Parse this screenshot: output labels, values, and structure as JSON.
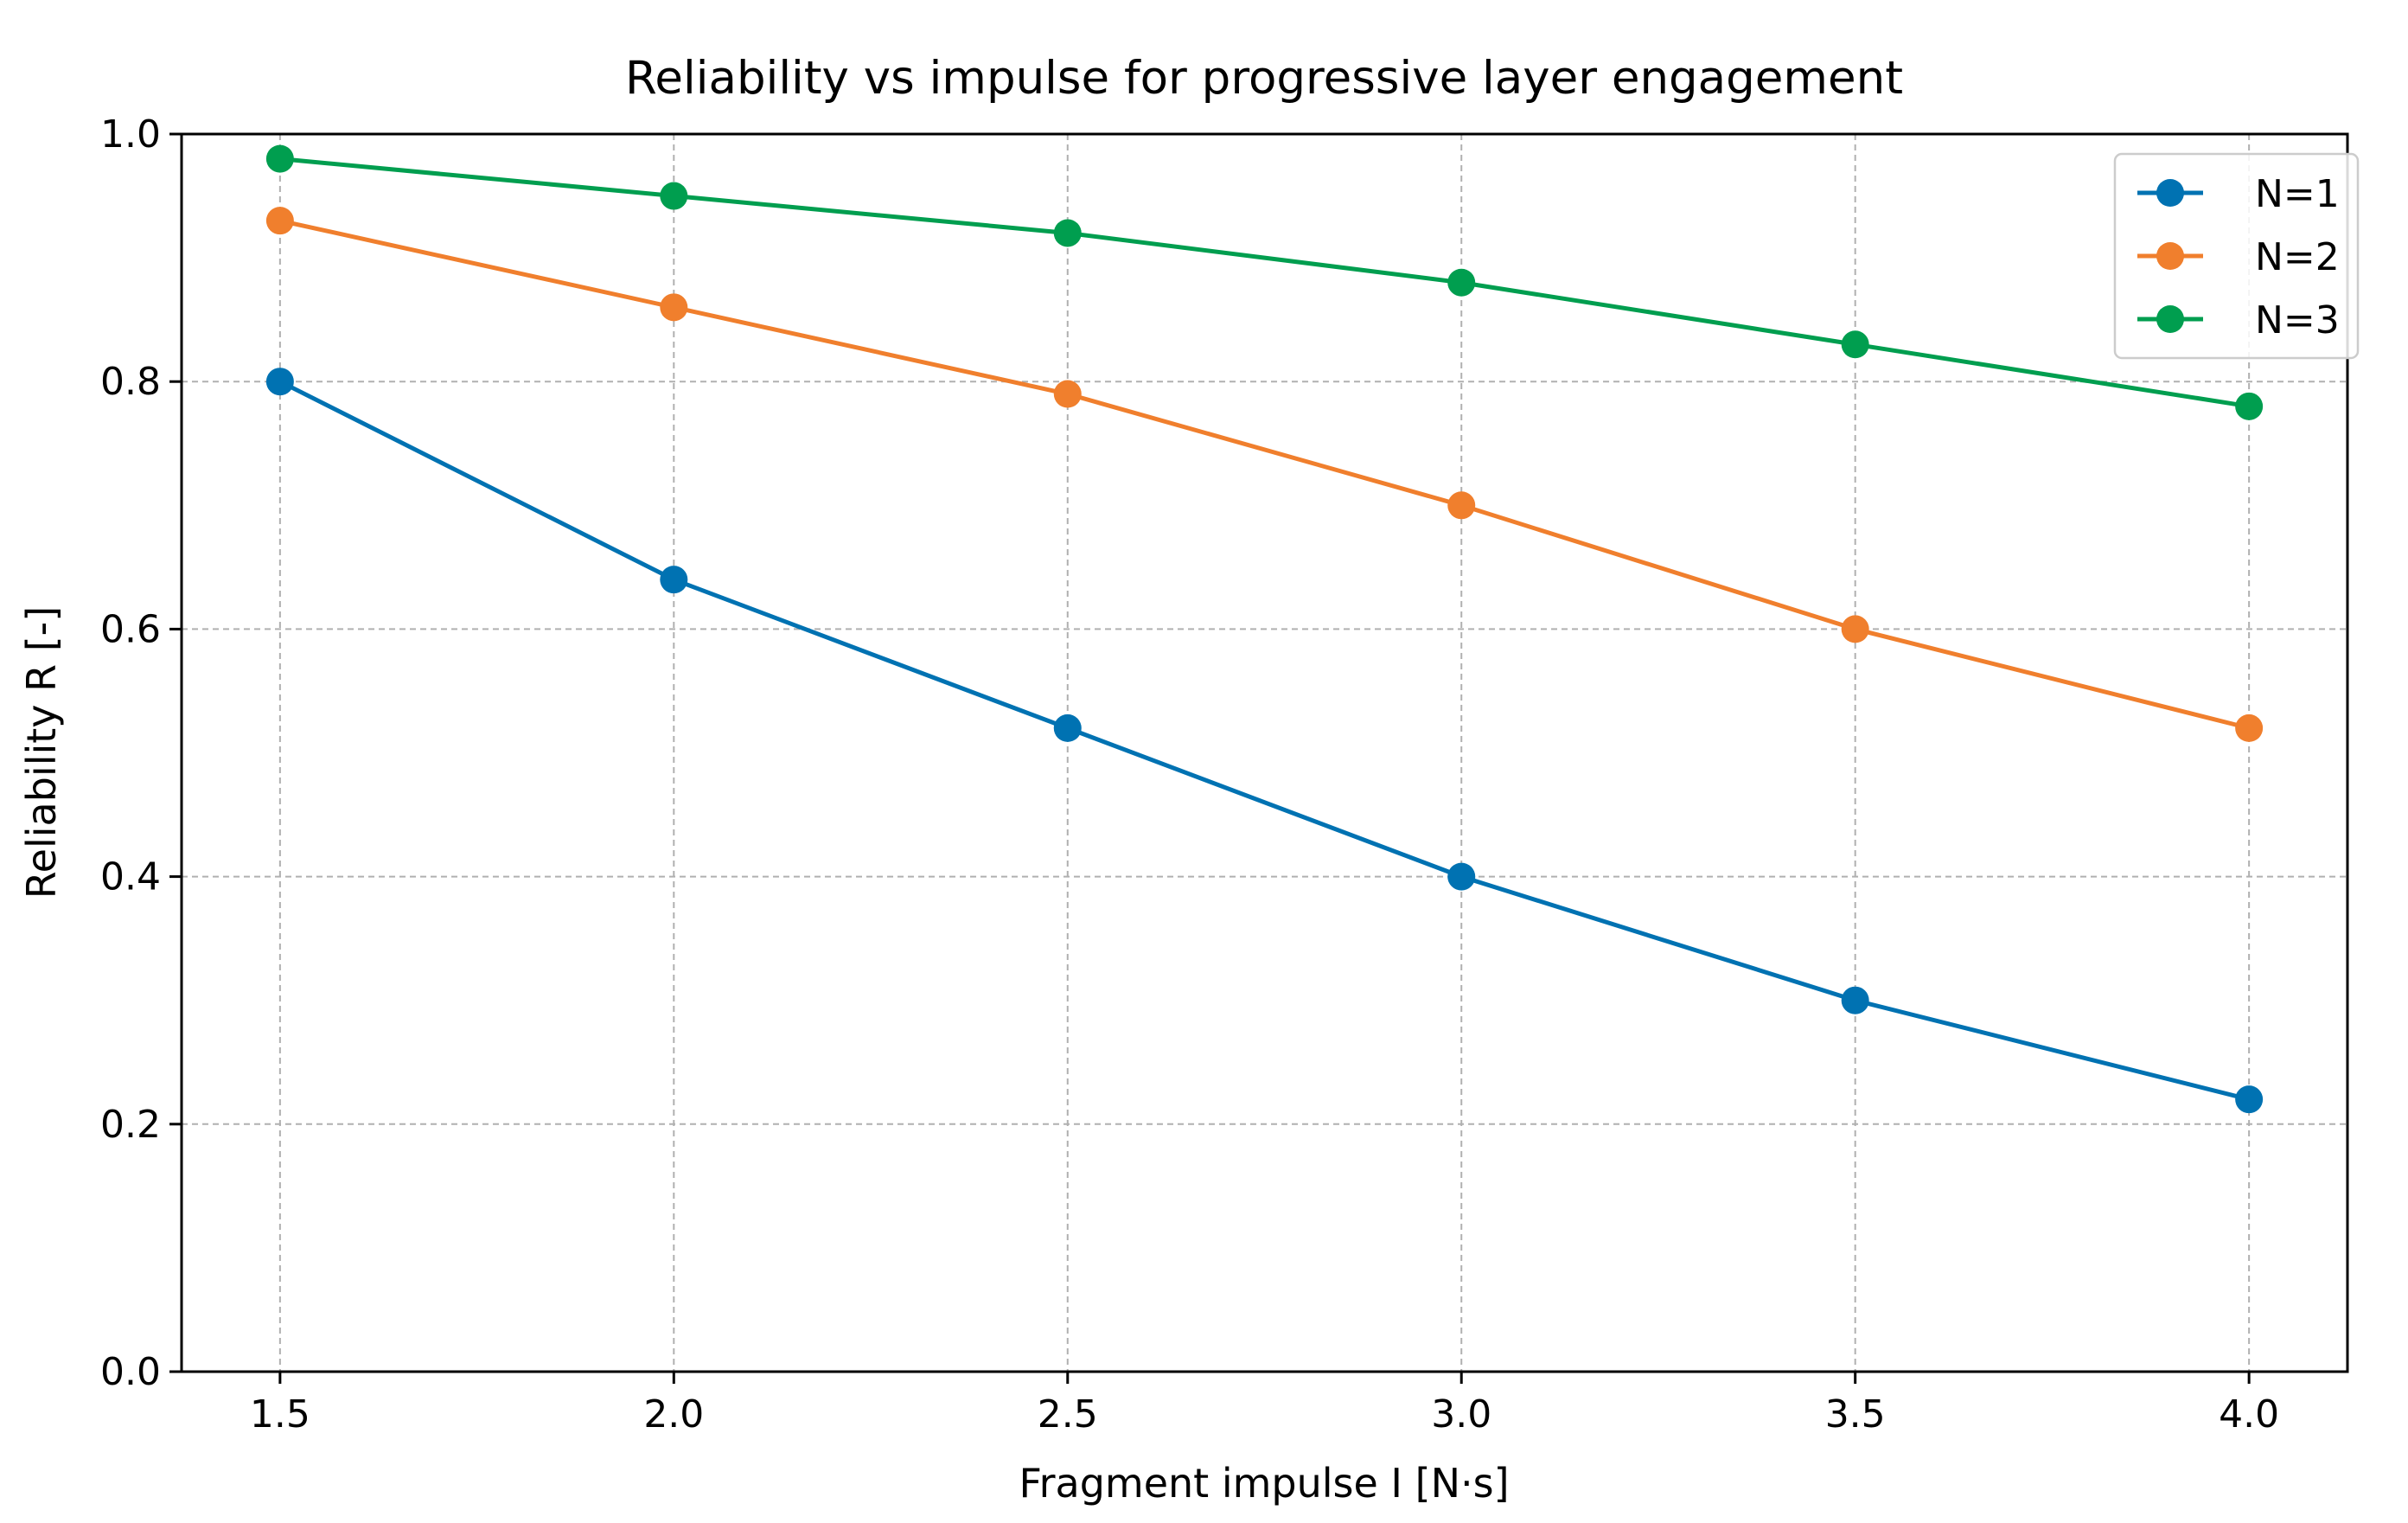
{
  "chart_data": {
    "type": "line",
    "title": "Reliability vs impulse for progressive layer engagement",
    "xlabel": "Fragment impulse I [N·s]",
    "ylabel": "Reliability R [-]",
    "xlim": [
      1.375,
      4.125
    ],
    "ylim": [
      0.0,
      1.0
    ],
    "x": [
      1.5,
      2.0,
      2.5,
      3.0,
      3.5,
      4.0
    ],
    "x_ticks": [
      "1.5",
      "2.0",
      "2.5",
      "3.0",
      "3.5",
      "4.0"
    ],
    "y_ticks": [
      "0.0",
      "0.2",
      "0.4",
      "0.6",
      "0.8",
      "1.0"
    ],
    "grid": true,
    "legend_position": "top-right",
    "series": [
      {
        "name": "N=1",
        "color": "#0072B2",
        "values": [
          0.8,
          0.64,
          0.52,
          0.4,
          0.3,
          0.22
        ]
      },
      {
        "name": "N=2",
        "color": "#F07F2D",
        "values": [
          0.93,
          0.86,
          0.79,
          0.7,
          0.6,
          0.52
        ]
      },
      {
        "name": "N=3",
        "color": "#009E4F",
        "values": [
          0.98,
          0.95,
          0.92,
          0.88,
          0.83,
          0.78
        ]
      }
    ]
  }
}
